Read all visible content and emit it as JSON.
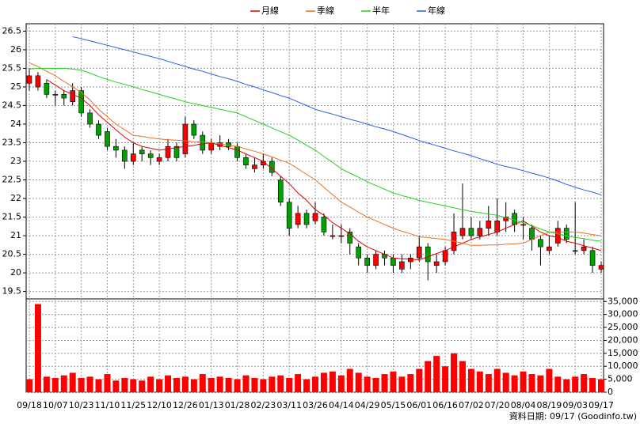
{
  "chart_data": {
    "type": "candlestick",
    "categories": [
      "09/18",
      null,
      null,
      "10/07",
      null,
      null,
      "10/23",
      null,
      null,
      "11/10",
      null,
      null,
      "11/25",
      null,
      null,
      "12/10",
      null,
      null,
      "12/26",
      null,
      null,
      "01/13",
      null,
      null,
      "01/28",
      null,
      null,
      "02/23",
      null,
      null,
      "03/11",
      null,
      null,
      "03/26",
      null,
      null,
      "04/14",
      null,
      null,
      "04/29",
      null,
      null,
      "05/15",
      null,
      null,
      "06/01",
      null,
      null,
      "06/16",
      null,
      null,
      "07/02",
      null,
      null,
      "07/20",
      null,
      null,
      "08/04",
      null,
      null,
      "08/19",
      null,
      null,
      "09/03",
      null,
      null,
      "09/17"
    ],
    "open": [
      25.1,
      25.0,
      25.1,
      24.8,
      24.8,
      24.6,
      24.9,
      24.3,
      24.0,
      23.8,
      23.4,
      23.3,
      23.0,
      23.3,
      23.2,
      23.0,
      23.1,
      23.4,
      23.2,
      24.0,
      23.7,
      23.3,
      23.4,
      23.5,
      23.4,
      23.1,
      22.8,
      22.9,
      23.0,
      22.5,
      21.9,
      21.3,
      21.6,
      21.4,
      21.5,
      21.0,
      21.0,
      21.1,
      20.7,
      20.4,
      20.2,
      20.5,
      20.4,
      20.1,
      20.3,
      20.4,
      20.7,
      20.2,
      20.3,
      20.6,
      21.0,
      21.2,
      21.0,
      21.2,
      21.1,
      21.4,
      21.6,
      21.3,
      21.2,
      20.9,
      20.6,
      20.8,
      21.2,
      20.6,
      20.6,
      20.6,
      20.1
    ],
    "high": [
      25.5,
      25.4,
      25.2,
      24.9,
      24.9,
      25.1,
      25.0,
      24.4,
      24.1,
      23.9,
      23.6,
      23.4,
      23.5,
      23.4,
      23.3,
      23.2,
      23.6,
      23.5,
      24.2,
      24.1,
      23.8,
      23.6,
      23.7,
      23.6,
      23.5,
      23.2,
      23.1,
      23.2,
      23.1,
      22.6,
      22.0,
      21.8,
      21.7,
      21.9,
      21.6,
      21.3,
      21.3,
      21.2,
      20.8,
      20.5,
      20.6,
      20.6,
      20.5,
      20.5,
      20.5,
      21.0,
      20.8,
      20.5,
      20.7,
      21.6,
      22.4,
      21.5,
      21.4,
      21.8,
      22.0,
      21.9,
      21.7,
      21.5,
      21.3,
      21.0,
      21.0,
      21.4,
      21.3,
      21.9,
      20.9,
      20.7,
      20.3
    ],
    "low": [
      24.9,
      24.9,
      24.7,
      24.5,
      24.5,
      24.5,
      24.2,
      23.9,
      23.6,
      23.3,
      23.1,
      22.8,
      22.9,
      23.0,
      22.9,
      22.9,
      23.0,
      23.0,
      23.1,
      23.6,
      23.2,
      23.2,
      23.3,
      23.3,
      23.0,
      22.8,
      22.7,
      22.8,
      22.6,
      21.8,
      21.0,
      21.2,
      21.2,
      21.3,
      21.0,
      20.9,
      20.8,
      20.5,
      20.2,
      20.0,
      20.1,
      20.2,
      20.0,
      20.0,
      20.1,
      20.3,
      19.8,
      20.0,
      20.2,
      20.5,
      20.9,
      20.9,
      20.9,
      21.0,
      21.0,
      21.1,
      21.1,
      20.9,
      20.6,
      20.2,
      20.5,
      20.7,
      20.8,
      20.5,
      20.5,
      20.0,
      20.0
    ],
    "close": [
      25.3,
      25.3,
      24.8,
      24.8,
      24.7,
      24.9,
      24.3,
      24.0,
      23.7,
      23.4,
      23.3,
      23.0,
      23.2,
      23.2,
      23.1,
      23.1,
      23.4,
      23.1,
      24.0,
      23.7,
      23.3,
      23.5,
      23.5,
      23.4,
      23.1,
      22.9,
      22.9,
      23.0,
      22.7,
      21.9,
      21.2,
      21.6,
      21.3,
      21.6,
      21.1,
      21.0,
      21.0,
      20.8,
      20.4,
      20.2,
      20.5,
      20.4,
      20.2,
      20.3,
      20.4,
      20.7,
      20.3,
      20.3,
      20.6,
      21.1,
      21.2,
      21.0,
      21.2,
      21.4,
      21.4,
      21.5,
      21.3,
      21.3,
      20.9,
      20.7,
      20.7,
      21.2,
      20.9,
      20.6,
      20.7,
      20.2,
      20.2
    ],
    "volume": [
      5000,
      34000,
      6000,
      5500,
      6500,
      7500,
      5500,
      6000,
      5000,
      7000,
      4500,
      5500,
      5000,
      4500,
      6000,
      5000,
      6500,
      5500,
      6000,
      5000,
      7000,
      5500,
      6000,
      5500,
      5000,
      6500,
      5500,
      5000,
      6000,
      6500,
      5500,
      7000,
      5000,
      6000,
      7500,
      8000,
      6500,
      9000,
      7500,
      6000,
      5500,
      7000,
      8000,
      6000,
      7000,
      9000,
      12000,
      14000,
      10000,
      15000,
      12000,
      9000,
      8000,
      7000,
      9000,
      7500,
      6500,
      8000,
      7000,
      6500,
      9000,
      6000,
      5000,
      6000,
      7000,
      5500,
      5000
    ],
    "up_color": "#ff0000",
    "down_color": "#00a000",
    "volume_color": "#ff0000",
    "series": [
      {
        "name": "月線",
        "color": "#e00000",
        "values": [
          null,
          null,
          25.2,
          25.05,
          24.9,
          24.8,
          24.7,
          24.5,
          24.25,
          24.05,
          23.85,
          23.65,
          23.5,
          23.4,
          23.35,
          23.3,
          23.33,
          23.37,
          23.4,
          23.43,
          23.47,
          23.5,
          23.43,
          23.37,
          23.3,
          23.2,
          23.1,
          23.0,
          22.8,
          22.6,
          22.4,
          22.15,
          21.95,
          21.7,
          21.55,
          21.35,
          21.2,
          21.05,
          20.85,
          20.7,
          20.6,
          20.5,
          20.4,
          20.38,
          20.37,
          20.35,
          20.43,
          20.52,
          20.6,
          20.7,
          20.8,
          20.9,
          20.97,
          21.03,
          21.1,
          21.2,
          21.3,
          21.4,
          21.25,
          21.1,
          21.0,
          20.95,
          20.85,
          20.8,
          20.73,
          20.67,
          20.6
        ]
      },
      {
        "name": "季線",
        "color": "#e87020",
        "values": [
          25.65,
          25.55,
          25.42,
          25.3,
          25.15,
          25.0,
          24.85,
          24.65,
          24.4,
          24.2,
          24.0,
          23.85,
          23.7,
          23.67,
          23.63,
          23.6,
          23.58,
          23.57,
          23.55,
          23.53,
          23.52,
          23.5,
          23.47,
          23.43,
          23.4,
          23.33,
          23.27,
          23.2,
          23.12,
          23.03,
          22.95,
          22.8,
          22.65,
          22.5,
          22.3,
          22.1,
          21.9,
          21.77,
          21.63,
          21.5,
          21.4,
          21.3,
          21.2,
          21.12,
          21.05,
          20.97,
          20.95,
          20.92,
          20.9,
          20.85,
          20.8,
          20.74,
          20.74,
          20.75,
          20.75,
          20.77,
          20.78,
          20.8,
          20.9,
          21.0,
          21.1,
          21.1,
          21.1,
          21.1,
          21.07,
          21.03,
          21.0
        ]
      },
      {
        "name": "半年",
        "color": "#20d020",
        "values": [
          25.48,
          25.5,
          25.5,
          25.5,
          25.5,
          25.48,
          25.45,
          25.37,
          25.28,
          25.2,
          25.13,
          25.07,
          25.0,
          24.93,
          24.87,
          24.8,
          24.73,
          24.67,
          24.6,
          24.55,
          24.5,
          24.45,
          24.4,
          24.35,
          24.3,
          24.2,
          24.1,
          24.0,
          23.9,
          23.8,
          23.7,
          23.57,
          23.43,
          23.3,
          23.13,
          22.97,
          22.8,
          22.68,
          22.57,
          22.45,
          22.35,
          22.25,
          22.15,
          22.08,
          22.02,
          21.95,
          21.9,
          21.85,
          21.8,
          21.75,
          21.7,
          21.65,
          21.62,
          21.58,
          21.55,
          21.48,
          21.42,
          21.35,
          21.27,
          21.18,
          21.1,
          21.05,
          21.0,
          20.95,
          20.92,
          20.88,
          20.85
        ]
      },
      {
        "name": "年線",
        "color": "#2060e0",
        "values": [
          null,
          null,
          null,
          null,
          null,
          26.35,
          26.3,
          26.24,
          26.18,
          26.12,
          26.06,
          26.0,
          25.94,
          25.88,
          25.82,
          25.76,
          25.69,
          25.62,
          25.55,
          25.48,
          25.42,
          25.35,
          25.28,
          25.22,
          25.15,
          25.07,
          25.0,
          24.92,
          24.85,
          24.77,
          24.7,
          24.6,
          24.5,
          24.4,
          24.33,
          24.27,
          24.2,
          24.13,
          24.07,
          24.0,
          23.93,
          23.87,
          23.8,
          23.72,
          23.64,
          23.56,
          23.49,
          23.42,
          23.35,
          23.28,
          23.22,
          23.15,
          23.07,
          23.0,
          22.92,
          22.86,
          22.81,
          22.75,
          22.68,
          22.62,
          22.55,
          22.47,
          22.38,
          22.3,
          22.23,
          22.17,
          22.1
        ]
      }
    ],
    "ylim": [
      19.3,
      26.7
    ],
    "yticks": [
      19.5,
      20,
      20.5,
      21,
      21.5,
      22,
      22.5,
      23,
      23.5,
      24,
      24.5,
      25,
      25.5,
      26,
      26.5
    ],
    "y2lim": [
      0,
      36000
    ],
    "y2ticks": [
      0,
      {
        "value": 5000,
        "label": "5,000"
      },
      {
        "value": 10000,
        "label": "10,000"
      },
      {
        "value": 15000,
        "label": "15,000"
      },
      {
        "value": 20000,
        "label": "20,000"
      },
      {
        "value": 25000,
        "label": "25,000"
      },
      {
        "value": 30000,
        "label": "30,000"
      },
      {
        "value": 35000,
        "label": "35,000"
      }
    ],
    "grid": true,
    "source": "資料日期: 09/17  (Goodinfo.tw)"
  }
}
